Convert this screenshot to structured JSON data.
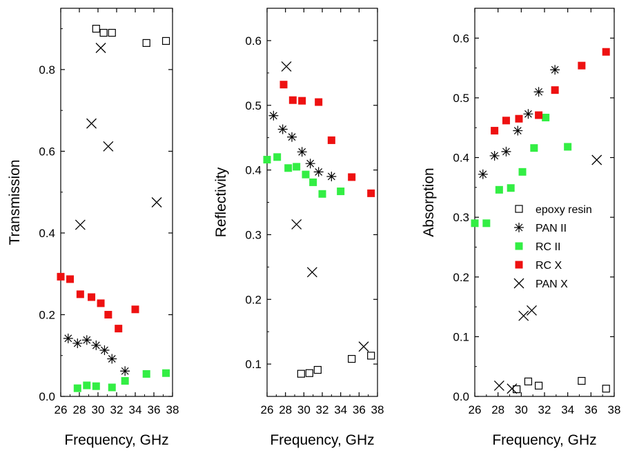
{
  "chart_data": [
    {
      "type": "scatter",
      "xlabel": "Frequency, GHz",
      "ylabel": "Transmission",
      "xlim": [
        26,
        38
      ],
      "ylim": [
        0,
        0.95
      ],
      "xticks": [
        26,
        28,
        30,
        32,
        34,
        36,
        38
      ],
      "xtick_labels": [
        "26",
        "28",
        "30",
        "32",
        "34",
        "36",
        "38"
      ],
      "yticks": [
        0.0,
        0.2,
        0.4,
        0.6,
        0.8
      ],
      "ytick_labels": [
        "0.0",
        "0.2",
        "0.4",
        "0.6",
        "0.8"
      ],
      "series": [
        {
          "key": "epoxy",
          "x": [
            29.8,
            30.6,
            31.5,
            35.2,
            37.3
          ],
          "y": [
            0.9,
            0.89,
            0.89,
            0.865,
            0.87
          ]
        },
        {
          "key": "pan2",
          "x": [
            26.8,
            27.8,
            28.8,
            29.8,
            30.7,
            31.5,
            32.9
          ],
          "y": [
            0.142,
            0.13,
            0.138,
            0.125,
            0.113,
            0.092,
            0.062
          ]
        },
        {
          "key": "rc2",
          "x": [
            27.8,
            28.8,
            29.8,
            31.5,
            32.9,
            35.2,
            37.3
          ],
          "y": [
            0.02,
            0.027,
            0.025,
            0.022,
            0.038,
            0.055,
            0.057
          ]
        },
        {
          "key": "rcx",
          "x": [
            26.0,
            27.0,
            28.1,
            29.3,
            30.3,
            31.1,
            32.2,
            34.0
          ],
          "y": [
            0.293,
            0.287,
            0.25,
            0.243,
            0.228,
            0.2,
            0.166,
            0.213
          ]
        },
        {
          "key": "panx",
          "x": [
            28.1,
            29.3,
            30.3,
            31.1,
            36.3
          ],
          "y": [
            0.42,
            0.668,
            0.853,
            0.612,
            0.475
          ]
        }
      ]
    },
    {
      "type": "scatter",
      "xlabel": "Frequency, GHz",
      "ylabel": "Reflectivity",
      "xlim": [
        26,
        38
      ],
      "ylim": [
        0.05,
        0.65
      ],
      "xticks": [
        26,
        28,
        30,
        32,
        34,
        36,
        38
      ],
      "xtick_labels": [
        "26",
        "28",
        "30",
        "32",
        "34",
        "36",
        "38"
      ],
      "yticks": [
        0.1,
        0.2,
        0.3,
        0.4,
        0.5,
        0.6
      ],
      "ytick_labels": [
        "0.1",
        "0.2",
        "0.3",
        "0.4",
        "0.5",
        "0.6"
      ],
      "series": [
        {
          "key": "epoxy",
          "x": [
            29.7,
            30.6,
            31.5,
            35.2,
            37.3
          ],
          "y": [
            0.085,
            0.086,
            0.091,
            0.108,
            0.113
          ]
        },
        {
          "key": "pan2",
          "x": [
            26.7,
            27.7,
            28.7,
            29.8,
            30.7,
            31.6,
            33.0
          ],
          "y": [
            0.484,
            0.463,
            0.451,
            0.428,
            0.41,
            0.397,
            0.39
          ]
        },
        {
          "key": "rc2",
          "x": [
            26.0,
            27.1,
            28.3,
            29.2,
            30.2,
            31.0,
            32.0,
            34.0
          ],
          "y": [
            0.416,
            0.42,
            0.403,
            0.405,
            0.393,
            0.381,
            0.363,
            0.367
          ]
        },
        {
          "key": "rcx",
          "x": [
            27.8,
            28.8,
            29.8,
            31.6,
            33.0,
            35.2,
            37.3
          ],
          "y": [
            0.532,
            0.508,
            0.507,
            0.505,
            0.446,
            0.389,
            0.364
          ]
        },
        {
          "key": "panx",
          "x": [
            28.1,
            29.2,
            30.9,
            36.5
          ],
          "y": [
            0.56,
            0.316,
            0.242,
            0.127
          ]
        }
      ]
    },
    {
      "type": "scatter",
      "xlabel": "Frequency, GHz",
      "ylabel": "Absorption",
      "xlim": [
        26,
        38
      ],
      "ylim": [
        0,
        0.65
      ],
      "xticks": [
        26,
        28,
        30,
        32,
        34,
        36,
        38
      ],
      "xtick_labels": [
        "26",
        "28",
        "30",
        "32",
        "34",
        "36",
        "38"
      ],
      "yticks": [
        0.0,
        0.1,
        0.2,
        0.3,
        0.4,
        0.5,
        0.6
      ],
      "ytick_labels": [
        "0.0",
        "0.1",
        "0.2",
        "0.3",
        "0.4",
        "0.5",
        "0.6"
      ],
      "legend": {
        "placement": "center-right",
        "entries": [
          {
            "key": "epoxy",
            "label": "epoxy resin"
          },
          {
            "key": "pan2",
            "label": "PAN II"
          },
          {
            "key": "rc2",
            "label": "RC II"
          },
          {
            "key": "rcx",
            "label": "RC X"
          },
          {
            "key": "panx",
            "label": "PAN X"
          }
        ]
      },
      "series": [
        {
          "key": "epoxy",
          "x": [
            29.6,
            30.6,
            31.5,
            35.2,
            37.3
          ],
          "y": [
            0.012,
            0.025,
            0.018,
            0.026,
            0.013
          ]
        },
        {
          "key": "pan2",
          "x": [
            26.7,
            27.7,
            28.7,
            29.7,
            30.6,
            31.5,
            32.9
          ],
          "y": [
            0.372,
            0.403,
            0.41,
            0.445,
            0.473,
            0.51,
            0.547
          ]
        },
        {
          "key": "rc2",
          "x": [
            26.0,
            27.0,
            28.1,
            29.1,
            30.1,
            31.1,
            32.1,
            34.0
          ],
          "y": [
            0.29,
            0.29,
            0.346,
            0.349,
            0.376,
            0.416,
            0.467,
            0.418
          ]
        },
        {
          "key": "rcx",
          "x": [
            27.7,
            28.7,
            29.8,
            31.5,
            32.9,
            35.2,
            37.3
          ],
          "y": [
            0.445,
            0.462,
            0.465,
            0.471,
            0.513,
            0.554,
            0.577
          ]
        },
        {
          "key": "panx",
          "x": [
            28.1,
            29.2,
            30.2,
            30.9,
            36.5
          ],
          "y": [
            0.018,
            0.013,
            0.135,
            0.144,
            0.396
          ]
        }
      ]
    }
  ],
  "markers": {
    "epoxy": {
      "shape": "open-square",
      "color": "#000000"
    },
    "pan2": {
      "shape": "asterisk",
      "color": "#000000"
    },
    "rc2": {
      "shape": "filled-square",
      "color": "#33ee44"
    },
    "rcx": {
      "shape": "filled-square",
      "color": "#ee1111"
    },
    "panx": {
      "shape": "x-cross",
      "color": "#000000"
    }
  }
}
